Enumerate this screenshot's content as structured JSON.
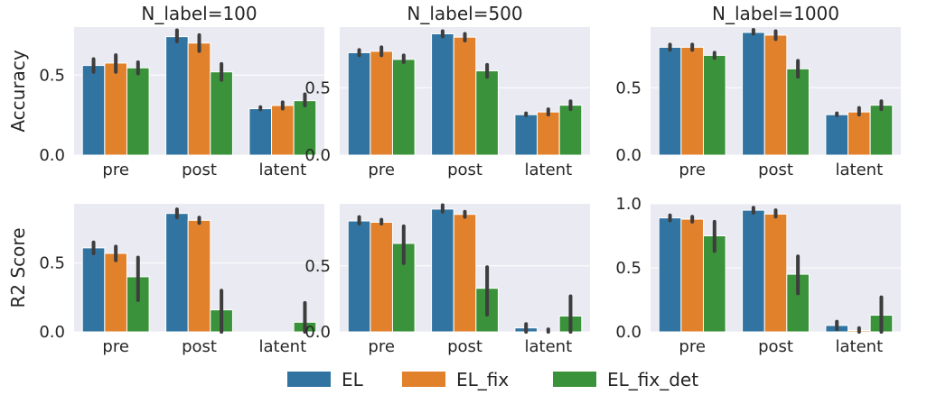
{
  "colors": {
    "panel_bg": "#eaeaf2",
    "grid": "#ffffff",
    "text": "#262626",
    "error_bar": "#3d3d3d"
  },
  "legend": {
    "placement": "bottom-center",
    "entries": [
      {
        "label": "EL",
        "color": "#3274a1"
      },
      {
        "label": "EL_fix",
        "color": "#e1812c"
      },
      {
        "label": "EL_fix_det",
        "color": "#3a923a"
      }
    ]
  },
  "chart_data": [
    {
      "type": "bar",
      "row": 0,
      "col": 0,
      "title": "N_label=100",
      "xlabel": "",
      "ylabel": "Accuracy",
      "categories": [
        "pre",
        "post",
        "latent"
      ],
      "ylim": [
        0,
        0.8
      ],
      "yticks": [
        0.0,
        0.5
      ],
      "ytick_labels": [
        "0.0",
        "0.5"
      ],
      "grid": true,
      "series": [
        {
          "name": "EL",
          "values": [
            0.56,
            0.74,
            0.29
          ],
          "err_low": [
            0.52,
            0.71,
            0.285
          ],
          "err_high": [
            0.6,
            0.78,
            0.3
          ]
        },
        {
          "name": "EL_fix",
          "values": [
            0.575,
            0.7,
            0.31
          ],
          "err_low": [
            0.52,
            0.65,
            0.29
          ],
          "err_high": [
            0.625,
            0.75,
            0.33
          ]
        },
        {
          "name": "EL_fix_det",
          "values": [
            0.545,
            0.52,
            0.34
          ],
          "err_low": [
            0.51,
            0.47,
            0.31
          ],
          "err_high": [
            0.58,
            0.57,
            0.38
          ]
        }
      ]
    },
    {
      "type": "bar",
      "row": 0,
      "col": 1,
      "title": "N_label=500",
      "xlabel": "",
      "ylabel": "",
      "categories": [
        "pre",
        "post",
        "latent"
      ],
      "ylim": [
        0,
        0.95
      ],
      "yticks": [
        0.0,
        0.5
      ],
      "ytick_labels": [
        "0.0",
        "0.5"
      ],
      "grid": true,
      "series": [
        {
          "name": "EL",
          "values": [
            0.76,
            0.9,
            0.3
          ],
          "err_low": [
            0.74,
            0.88,
            0.295
          ],
          "err_high": [
            0.78,
            0.92,
            0.31
          ]
        },
        {
          "name": "EL_fix",
          "values": [
            0.77,
            0.875,
            0.32
          ],
          "err_low": [
            0.74,
            0.85,
            0.3
          ],
          "err_high": [
            0.8,
            0.9,
            0.34
          ]
        },
        {
          "name": "EL_fix_det",
          "values": [
            0.71,
            0.625,
            0.37
          ],
          "err_low": [
            0.69,
            0.58,
            0.34
          ],
          "err_high": [
            0.74,
            0.67,
            0.4
          ]
        }
      ]
    },
    {
      "type": "bar",
      "row": 0,
      "col": 2,
      "title": "N_label=1000",
      "xlabel": "",
      "ylabel": "",
      "categories": [
        "pre",
        "post",
        "latent"
      ],
      "ylim": [
        0,
        0.95
      ],
      "yticks": [
        0.0,
        0.5
      ],
      "ytick_labels": [
        "0.0",
        "0.5"
      ],
      "grid": true,
      "series": [
        {
          "name": "EL",
          "values": [
            0.8,
            0.91,
            0.3
          ],
          "err_low": [
            0.78,
            0.9,
            0.295
          ],
          "err_high": [
            0.82,
            0.93,
            0.31
          ]
        },
        {
          "name": "EL_fix",
          "values": [
            0.8,
            0.89,
            0.32
          ],
          "err_low": [
            0.78,
            0.86,
            0.3
          ],
          "err_high": [
            0.82,
            0.92,
            0.35
          ]
        },
        {
          "name": "EL_fix_det",
          "values": [
            0.74,
            0.64,
            0.37
          ],
          "err_low": [
            0.72,
            0.58,
            0.34
          ],
          "err_high": [
            0.76,
            0.7,
            0.4
          ]
        }
      ]
    },
    {
      "type": "bar",
      "row": 1,
      "col": 0,
      "title": "",
      "xlabel": "",
      "ylabel": "R2 Score",
      "categories": [
        "pre",
        "post",
        "latent"
      ],
      "ylim": [
        0,
        0.93
      ],
      "yticks": [
        0.0,
        0.5
      ],
      "ytick_labels": [
        "0.0",
        "0.5"
      ],
      "grid": true,
      "series": [
        {
          "name": "EL",
          "values": [
            0.61,
            0.86,
            0.0
          ],
          "err_low": [
            0.57,
            0.83,
            0.0
          ],
          "err_high": [
            0.65,
            0.89,
            0.0
          ]
        },
        {
          "name": "EL_fix",
          "values": [
            0.57,
            0.81,
            0.0
          ],
          "err_low": [
            0.52,
            0.79,
            0.0
          ],
          "err_high": [
            0.62,
            0.83,
            0.0
          ]
        },
        {
          "name": "EL_fix_det",
          "values": [
            0.4,
            0.16,
            0.07
          ],
          "err_low": [
            0.23,
            0.0,
            0.0
          ],
          "err_high": [
            0.54,
            0.3,
            0.21
          ]
        }
      ]
    },
    {
      "type": "bar",
      "row": 1,
      "col": 1,
      "title": "",
      "xlabel": "",
      "ylabel": "",
      "categories": [
        "pre",
        "post",
        "latent"
      ],
      "ylim": [
        0,
        0.97
      ],
      "yticks": [
        0.0,
        0.5
      ],
      "ytick_labels": [
        "0.0",
        "0.5"
      ],
      "grid": true,
      "series": [
        {
          "name": "EL",
          "values": [
            0.84,
            0.93,
            0.03
          ],
          "err_low": [
            0.82,
            0.91,
            0.0
          ],
          "err_high": [
            0.87,
            0.96,
            0.06
          ]
        },
        {
          "name": "EL_fix",
          "values": [
            0.83,
            0.89,
            0.0
          ],
          "err_low": [
            0.82,
            0.87,
            0.0
          ],
          "err_high": [
            0.85,
            0.91,
            0.02
          ]
        },
        {
          "name": "EL_fix_det",
          "values": [
            0.67,
            0.33,
            0.12
          ],
          "err_low": [
            0.52,
            0.13,
            0.0
          ],
          "err_high": [
            0.8,
            0.49,
            0.27
          ]
        }
      ]
    },
    {
      "type": "bar",
      "row": 1,
      "col": 2,
      "title": "",
      "xlabel": "",
      "ylabel": "",
      "categories": [
        "pre",
        "post",
        "latent"
      ],
      "ylim": [
        0,
        1.0
      ],
      "yticks": [
        0.0,
        0.5,
        1.0
      ],
      "ytick_labels": [
        "0.0",
        "0.5",
        "1.0"
      ],
      "grid": true,
      "series": [
        {
          "name": "EL",
          "values": [
            0.89,
            0.95,
            0.05
          ],
          "err_low": [
            0.87,
            0.93,
            0.02
          ],
          "err_high": [
            0.91,
            0.97,
            0.08
          ]
        },
        {
          "name": "EL_fix",
          "values": [
            0.88,
            0.92,
            0.01
          ],
          "err_low": [
            0.86,
            0.9,
            0.0
          ],
          "err_high": [
            0.9,
            0.95,
            0.03
          ]
        },
        {
          "name": "EL_fix_det",
          "values": [
            0.75,
            0.45,
            0.13
          ],
          "err_low": [
            0.63,
            0.3,
            0.0
          ],
          "err_high": [
            0.86,
            0.59,
            0.27
          ]
        }
      ]
    }
  ]
}
